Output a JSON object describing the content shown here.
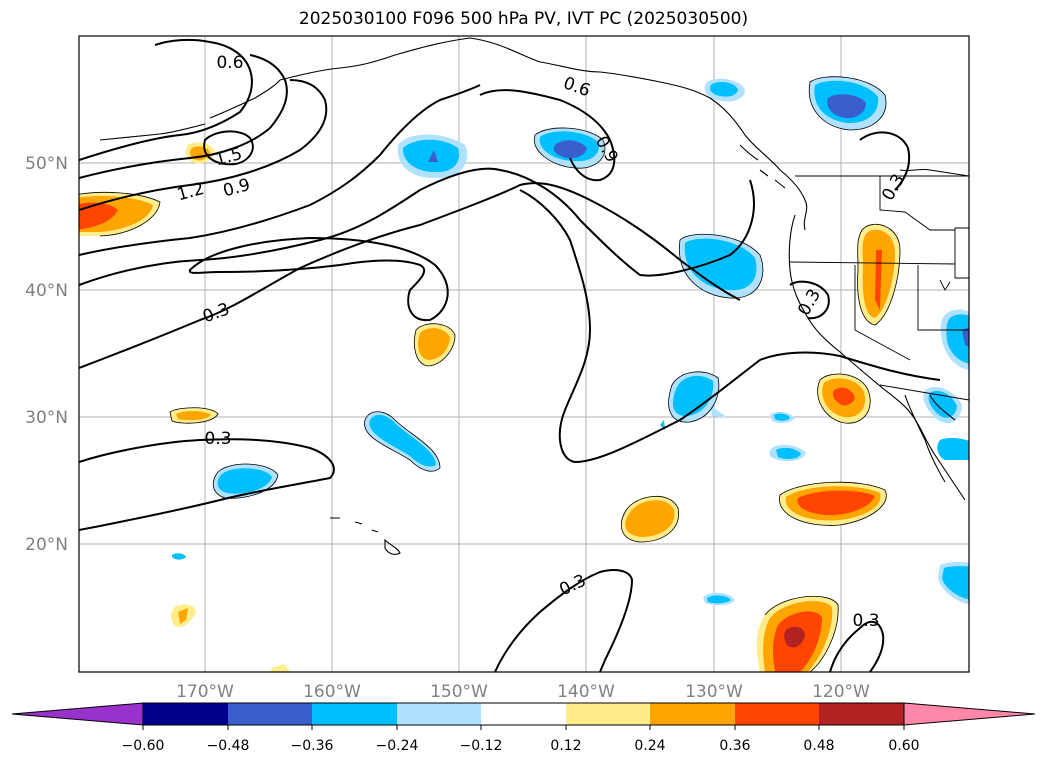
{
  "title": "2025030100 F096 500 hPa PV, IVT PC (2025030500)",
  "lat_labels": [
    "50°N",
    "40°N",
    "30°N",
    "20°N"
  ],
  "lon_labels": [
    "170°W",
    "160°W",
    "150°W",
    "140°W",
    "130°W",
    "120°W"
  ],
  "contour_labels": [
    "0.6",
    "0.6",
    "0.9",
    "1.5",
    "1.2",
    "0.9",
    "0.3",
    "0.3",
    "0.3",
    "0.3",
    "0.3",
    "0.3"
  ],
  "colorbar": {
    "ticks": [
      "−0.60",
      "−0.48",
      "−0.36",
      "−0.24",
      "−0.12",
      "0.12",
      "0.24",
      "0.36",
      "0.48",
      "0.60"
    ],
    "colors": [
      "#9932cc",
      "#00008b",
      "#3a5fcd",
      "#00bfff",
      "#b0e2ff",
      "#ffffff",
      "#ffec8b",
      "#ffa500",
      "#ff4500",
      "#b22222",
      "#ff88aa"
    ]
  },
  "fill_colors": {
    "light_blue": "#b0e2ff",
    "blue": "#00bfff",
    "royal": "#3a5fcd",
    "light_yellow": "#ffec8b",
    "orange": "#ffa500",
    "red_orange": "#ff4500",
    "dark_red": "#b22222"
  }
}
